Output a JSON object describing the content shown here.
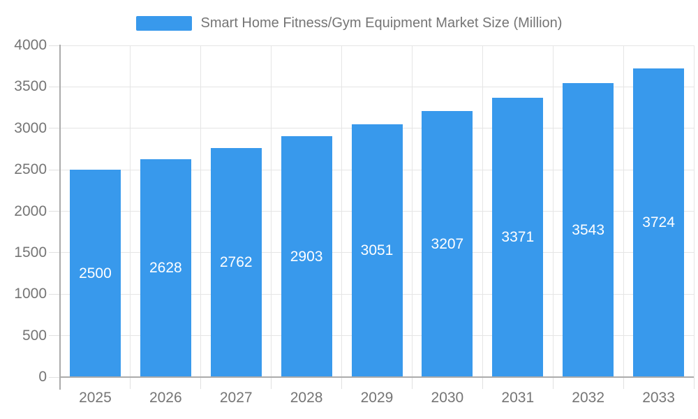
{
  "colors": {
    "background": "#FFFFFF",
    "bar": "#3899EC",
    "axis_text": "#757575",
    "legend_text": "#757575",
    "grid_line": "#E5E5E5",
    "tick_line": "#E0E0E0",
    "axis_line": "#ABABAB",
    "value_label": "#FFFFFF"
  },
  "legend": {
    "position": "top"
  },
  "chart_data": {
    "type": "bar",
    "title": "",
    "categories": [
      "2025",
      "2026",
      "2027",
      "2028",
      "2029",
      "2030",
      "2031",
      "2032",
      "2033"
    ],
    "series": [
      {
        "name": "Smart Home Fitness/Gym Equipment Market Size (Million)",
        "values": [
          2500,
          2628,
          2762,
          2903,
          3051,
          3207,
          3371,
          3543,
          3724
        ],
        "color": "#3899EC"
      }
    ],
    "xlabel": "",
    "ylabel": "",
    "ylim": [
      0,
      4000
    ],
    "ytick_values": [
      0,
      500,
      1000,
      1500,
      2000,
      2500,
      3000,
      3500,
      4000
    ],
    "ytick_labels": [
      "0",
      "500",
      "1000",
      "1500",
      "2000",
      "2500",
      "3000",
      "3500",
      "4000"
    ],
    "grid": true,
    "legend_position": "top",
    "value_label_position": "inside-center"
  }
}
